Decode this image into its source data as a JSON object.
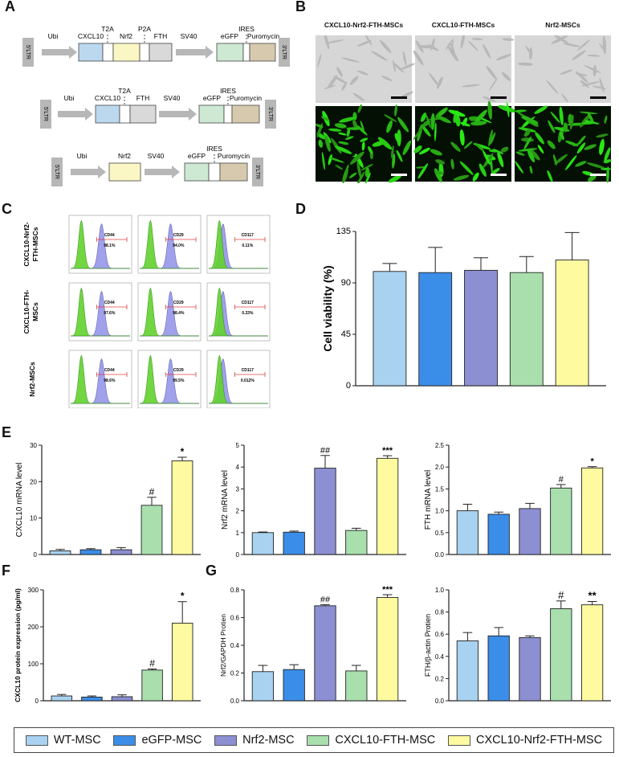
{
  "panels": {
    "A": "A",
    "B": "B",
    "C": "C",
    "D": "D",
    "E": "E",
    "F": "F",
    "G": "G"
  },
  "constructs": [
    {
      "ltr_left": "5'LTR",
      "ltr_right": "3'LTR",
      "promoter": "Ubi",
      "markers": [
        "T2A",
        "P2A",
        "IRES"
      ],
      "genes": [
        "CXCL10",
        "Nrf2",
        "FTH"
      ],
      "spacer": "SV40",
      "reporters": [
        "eGFP",
        "Puromycin"
      ]
    },
    {
      "ltr_left": "5'LTR",
      "ltr_right": "3'LTR",
      "promoter": "Ubi",
      "markers": [
        "T2A",
        "IRES"
      ],
      "genes": [
        "CXCL10",
        "FTH"
      ],
      "spacer": "SV40",
      "reporters": [
        "eGFP",
        "Puromycin"
      ]
    },
    {
      "ltr_left": "5'LTR",
      "ltr_right": "3'LTR",
      "promoter": "Ubi",
      "markers": [
        "IRES"
      ],
      "genes": [
        "Nrf2"
      ],
      "spacer": "SV40",
      "reporters": [
        "eGFP",
        "Puromycin"
      ]
    }
  ],
  "microscopy": {
    "columns": [
      "CXCL10-Nrf2-FTH-MSCs",
      "CXCL10-FTH-MSCs",
      "Nrf2-MSCs"
    ]
  },
  "flow": {
    "rows": [
      "CXCL10-Nrf2-FTH-MSCs",
      "CXCL10-FTH-MSCs",
      "Nrf2-MSCs"
    ],
    "row_labels": [
      [
        "CXCL10-Nrf2-",
        "FTH-MSCs"
      ],
      [
        "CXCL10-FTH-",
        "MSCs"
      ],
      [
        "Nrf2-MSCs"
      ]
    ],
    "cells": [
      [
        {
          "marker": "CD44",
          "pct": "98.1%"
        },
        {
          "marker": "CD29",
          "pct": "94.0%"
        },
        {
          "marker": "CD117",
          "pct": "0.11%"
        }
      ],
      [
        {
          "marker": "CD44",
          "pct": "97.6%"
        },
        {
          "marker": "CD29",
          "pct": "98.4%"
        },
        {
          "marker": "CD117",
          "pct": "0.33%"
        }
      ],
      [
        {
          "marker": "CD44",
          "pct": "98.6%"
        },
        {
          "marker": "CD29",
          "pct": "99.5%"
        },
        {
          "marker": "CD117",
          "pct": "0.012%"
        }
      ]
    ]
  },
  "colors": {
    "WT-MSC": "#a8d2f0",
    "eGFP-MSC": "#3b8ee8",
    "Nrf2-MSC": "#8c8fd2",
    "CXCL10-FTH-MSC": "#a8dfad",
    "CXCL10-Nrf2-FTH-MSC": "#fdfaa0",
    "gfp_green": "#33cc22",
    "histogram_green": "#62d22e",
    "histogram_blue": "#8f8fe8",
    "gate_red": "#e04040"
  },
  "legend": [
    {
      "label": "WT-MSC",
      "color": "#a8d2f0"
    },
    {
      "label": "eGFP-MSC",
      "color": "#3b8ee8"
    },
    {
      "label": "Nrf2-MSC",
      "color": "#8c8fd2"
    },
    {
      "label": "CXCL10-FTH-MSC",
      "color": "#a8dfad"
    },
    {
      "label": "CXCL10-Nrf2-FTH-MSC",
      "color": "#fdfaa0"
    }
  ],
  "chart_data": [
    {
      "id": "D",
      "type": "bar",
      "title": "",
      "categories": [
        "WT-MSC",
        "eGFP-MSC",
        "Nrf2-MSC",
        "CXCL10-FTH-MSC",
        "CXCL10-Nrf2-FTH-MSC"
      ],
      "values": [
        100,
        99,
        101,
        99,
        110
      ],
      "errors": [
        7,
        22,
        11,
        14,
        24
      ],
      "ylabel": "Cell viability (%)",
      "ylim": [
        0,
        135
      ],
      "yticks": [
        0,
        45,
        90,
        135
      ],
      "ytick_labels": [
        "0",
        "45",
        "90",
        "135"
      ],
      "annotations": [
        "",
        "",
        "",
        "",
        ""
      ]
    },
    {
      "id": "E1",
      "type": "bar",
      "title": "",
      "categories": [
        "WT-MSC",
        "eGFP-MSC",
        "Nrf2-MSC",
        "CXCL10-FTH-MSC",
        "CXCL10-Nrf2-FTH-MSC"
      ],
      "values": [
        1.0,
        1.3,
        1.3,
        13.5,
        25.7
      ],
      "errors": [
        0.4,
        0.3,
        0.6,
        2.2,
        1.0
      ],
      "ylabel": "CXCL10 mRNA level",
      "ylim": [
        0,
        30
      ],
      "yticks": [
        0,
        10,
        20,
        30
      ],
      "ytick_labels": [
        "0",
        "10",
        "20",
        "30"
      ],
      "annotations": [
        "",
        "",
        "",
        "#",
        "*"
      ]
    },
    {
      "id": "E2",
      "type": "bar",
      "title": "",
      "categories": [
        "WT-MSC",
        "eGFP-MSC",
        "Nrf2-MSC",
        "CXCL10-FTH-MSC",
        "CXCL10-Nrf2-FTH-MSC"
      ],
      "values": [
        1.0,
        1.02,
        3.95,
        1.1,
        4.4
      ],
      "errors": [
        0.03,
        0.05,
        0.58,
        0.1,
        0.12
      ],
      "ylabel": "Nrf2 mRNA level",
      "ylim": [
        0,
        5
      ],
      "yticks": [
        0,
        1,
        2,
        3,
        4,
        5
      ],
      "ytick_labels": [
        "0",
        "1",
        "2",
        "3",
        "4",
        "5"
      ],
      "annotations": [
        "",
        "",
        "##",
        "",
        "***"
      ]
    },
    {
      "id": "E3",
      "type": "bar",
      "title": "",
      "categories": [
        "WT-MSC",
        "eGFP-MSC",
        "Nrf2-MSC",
        "CXCL10-FTH-MSC",
        "CXCL10-Nrf2-FTH-MSC"
      ],
      "values": [
        1.0,
        0.92,
        1.05,
        1.52,
        1.98
      ],
      "errors": [
        0.15,
        0.05,
        0.12,
        0.08,
        0.03
      ],
      "ylabel": "FTH mRNA level",
      "ylim": [
        0,
        2.5
      ],
      "yticks": [
        0,
        0.5,
        1.0,
        1.5,
        2.0,
        2.5
      ],
      "ytick_labels": [
        "0.0",
        "0.5",
        "1.0",
        "1.5",
        "2.0",
        "2.5"
      ],
      "annotations": [
        "",
        "",
        "",
        "#",
        "*"
      ]
    },
    {
      "id": "F",
      "type": "bar",
      "title": "",
      "categories": [
        "WT-MSC",
        "eGFP-MSC",
        "Nrf2-MSC",
        "CXCL10-FTH-MSC",
        "CXCL10-Nrf2-FTH-MSC"
      ],
      "values": [
        13,
        10,
        11,
        83,
        210
      ],
      "errors": [
        4,
        3,
        5,
        3,
        58
      ],
      "ylabel": "CXCL10 protein expression (pg/ml)",
      "ylim": [
        0,
        300
      ],
      "yticks": [
        0,
        100,
        200,
        300
      ],
      "ytick_labels": [
        "0",
        "100",
        "200",
        "300"
      ],
      "annotations": [
        "",
        "",
        "",
        "#",
        "*"
      ]
    },
    {
      "id": "G1",
      "type": "bar",
      "title": "",
      "categories": [
        "WT-MSC",
        "eGFP-MSC",
        "Nrf2-MSC",
        "CXCL10-FTH-MSC",
        "CXCL10-Nrf2-FTH-MSC"
      ],
      "values": [
        0.21,
        0.225,
        0.685,
        0.215,
        0.745
      ],
      "errors": [
        0.045,
        0.035,
        0.008,
        0.04,
        0.02
      ],
      "ylabel": "Nrf2/GAPDH Protien",
      "ylim": [
        0,
        0.8
      ],
      "yticks": [
        0,
        0.2,
        0.4,
        0.6,
        0.8
      ],
      "ytick_labels": [
        "0.0",
        "0.2",
        "0.4",
        "0.6",
        "0.8"
      ],
      "annotations": [
        "",
        "",
        "##",
        "",
        "***"
      ]
    },
    {
      "id": "G2",
      "type": "bar",
      "title": "",
      "categories": [
        "WT-MSC",
        "eGFP-MSC",
        "Nrf2-MSC",
        "CXCL10-FTH-MSC",
        "CXCL10-Nrf2-FTH-MSC"
      ],
      "values": [
        0.54,
        0.585,
        0.57,
        0.83,
        0.865
      ],
      "errors": [
        0.075,
        0.075,
        0.015,
        0.07,
        0.03
      ],
      "ylabel": "FTH/β-actin Protien",
      "ylim": [
        0,
        1.0
      ],
      "yticks": [
        0,
        0.2,
        0.4,
        0.6,
        0.8,
        1.0
      ],
      "ytick_labels": [
        "0.0",
        "0.2",
        "0.4",
        "0.6",
        "0.8",
        "1.0"
      ],
      "annotations": [
        "",
        "",
        "",
        "#",
        "**"
      ]
    }
  ]
}
